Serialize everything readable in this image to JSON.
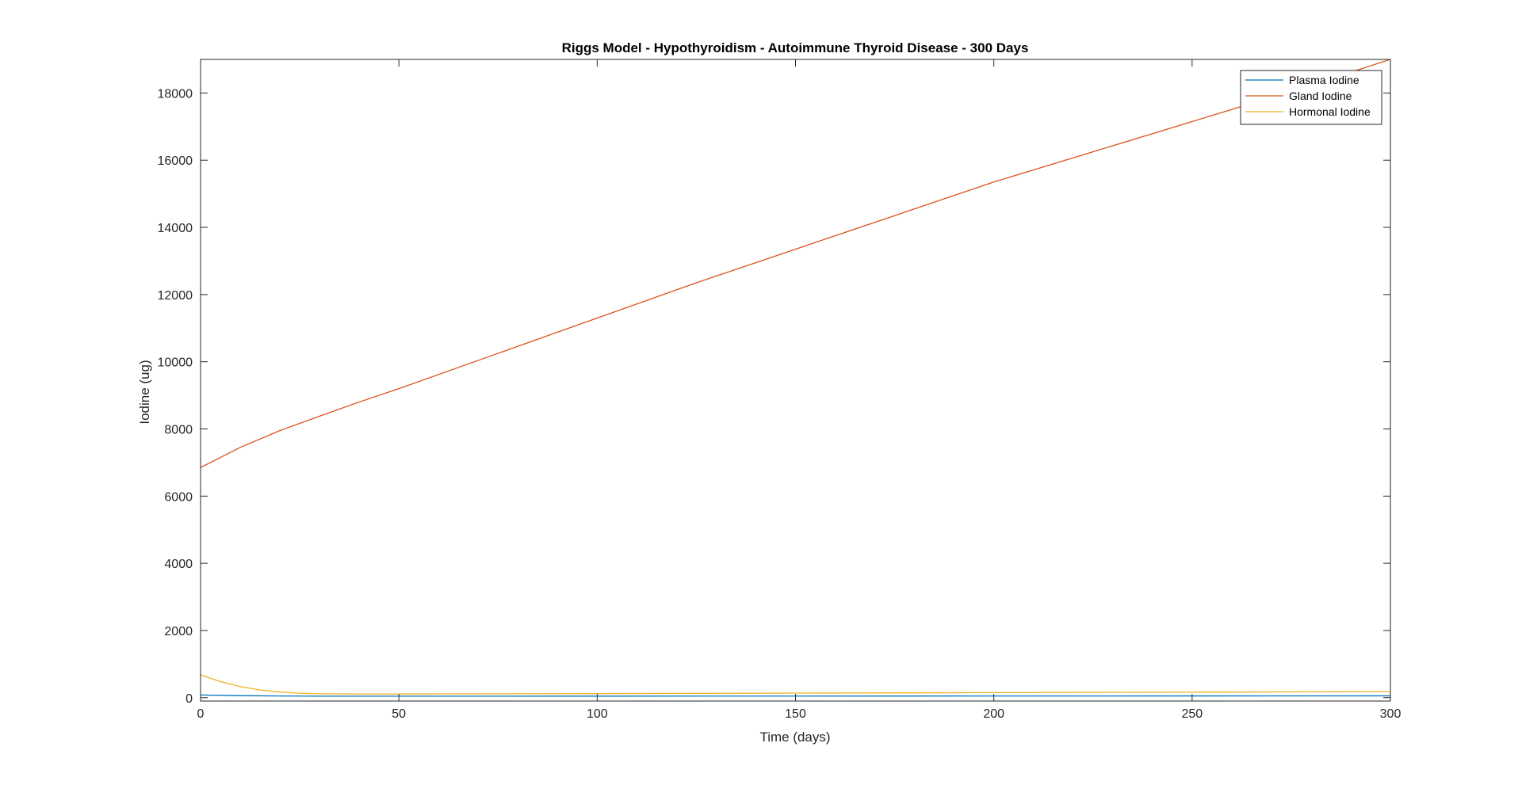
{
  "chart_data": {
    "type": "line",
    "title": "Riggs Model - Hypothyroidism - Autoimmune Thyroid Disease - 300 Days",
    "xlabel": "Time (days)",
    "ylabel": "Iodine (ug)",
    "xlim": [
      0,
      300
    ],
    "ylim": [
      -100,
      19000
    ],
    "xticks": [
      0,
      50,
      100,
      150,
      200,
      250,
      300
    ],
    "yticks": [
      0,
      2000,
      4000,
      6000,
      8000,
      10000,
      12000,
      14000,
      16000,
      18000
    ],
    "grid": false,
    "legend_position": "top-right",
    "series": [
      {
        "name": "Plasma Iodine",
        "color": "#0072BD",
        "x": [
          0,
          10,
          20,
          30,
          50,
          75,
          100,
          150,
          200,
          250,
          300
        ],
        "y": [
          80,
          60,
          50,
          45,
          45,
          45,
          46,
          48,
          50,
          52,
          55
        ]
      },
      {
        "name": "Gland Iodine",
        "color": "#D95319",
        "x": [
          0,
          10,
          20,
          30,
          40,
          50,
          75,
          100,
          125,
          150,
          175,
          200,
          225,
          250,
          275,
          300
        ],
        "y": [
          6850,
          7450,
          7950,
          8380,
          8800,
          9200,
          10250,
          11300,
          12350,
          13350,
          14350,
          15350,
          16250,
          17150,
          18050,
          19000
        ]
      },
      {
        "name": "Hormonal Iodine",
        "color": "#EDB120",
        "x": [
          0,
          5,
          10,
          15,
          20,
          25,
          30,
          40,
          50,
          75,
          100,
          150,
          200,
          250,
          300
        ],
        "y": [
          680,
          480,
          330,
          230,
          170,
          130,
          115,
          110,
          110,
          115,
          120,
          135,
          150,
          165,
          180
        ]
      }
    ]
  }
}
